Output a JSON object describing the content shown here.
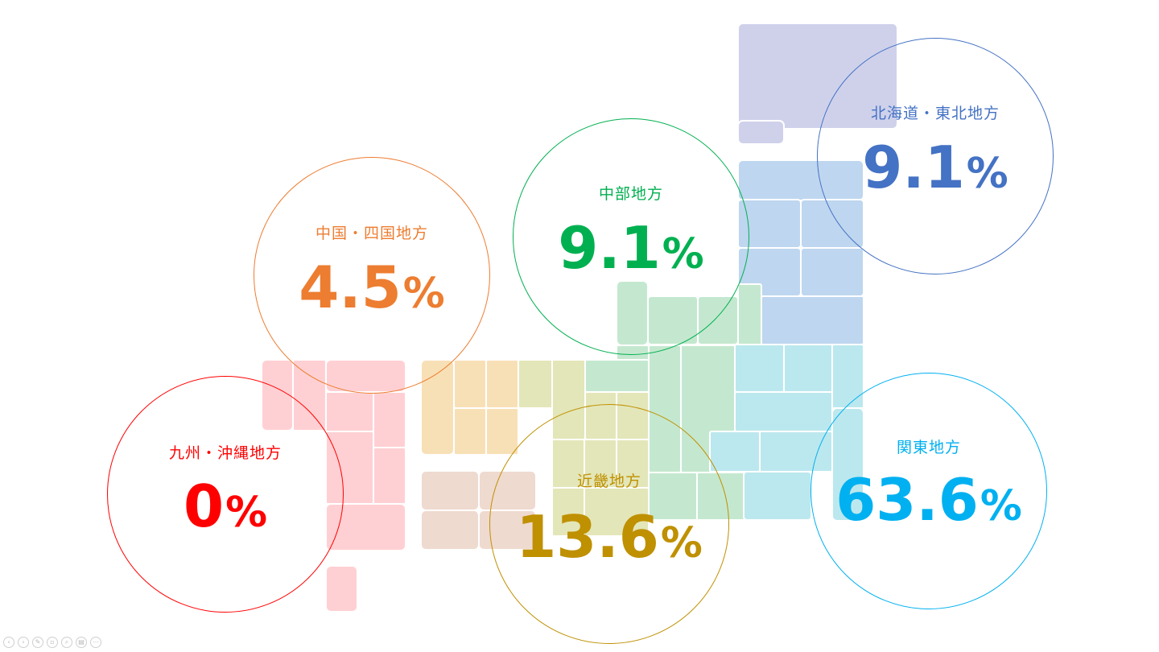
{
  "slide": {
    "regions": [
      {
        "id": "kyushu-okinawa",
        "name": "九州・沖縄地方",
        "value": "0",
        "unit": "%",
        "color": "#ff0000",
        "fill": "#ffd0d3"
      },
      {
        "id": "chugoku-shikoku",
        "name": "中国・四国地方",
        "value": "4.5",
        "unit": "%",
        "color": "#ed7d31",
        "fill": "#f8e0b6"
      },
      {
        "id": "chubu",
        "name": "中部地方",
        "value": "9.1",
        "unit": "%",
        "color": "#00b050",
        "fill": "#c4e8cf"
      },
      {
        "id": "hokkaido-tohoku",
        "name": "北海道・東北地方",
        "value": "9.1",
        "unit": "%",
        "color": "#4472c4",
        "fill": "#bed6ef"
      },
      {
        "id": "kinki",
        "name": "近畿地方",
        "value": "13.6",
        "unit": "%",
        "color": "#bf9000",
        "fill": "#e3e6b8"
      },
      {
        "id": "kanto",
        "name": "関東地方",
        "value": "63.6",
        "unit": "%",
        "color": "#00b0f0",
        "fill": "#bbe8ee"
      }
    ],
    "hokkaido_fill": "#cfd1eb",
    "shikoku_fill": "#efdad0"
  },
  "controls": [
    {
      "name": "prev-icon",
      "glyph": "‹"
    },
    {
      "name": "next-icon",
      "glyph": "›"
    },
    {
      "name": "pen-icon",
      "glyph": "✎"
    },
    {
      "name": "slides-icon",
      "glyph": "▫"
    },
    {
      "name": "zoom-icon",
      "glyph": "⌕"
    },
    {
      "name": "subtitles-icon",
      "glyph": "▤"
    },
    {
      "name": "more-icon",
      "glyph": "⋯"
    }
  ]
}
